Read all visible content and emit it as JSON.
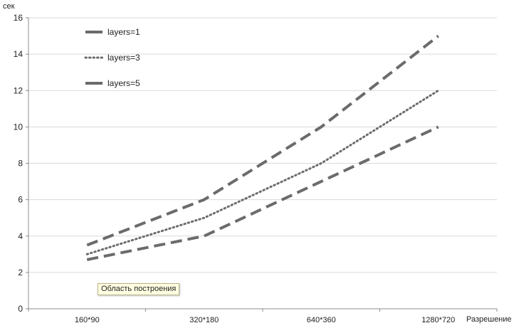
{
  "chart_data": {
    "type": "line",
    "ylabel": "сек",
    "xlabel": "Разрешение",
    "categories": [
      "160*90",
      "320*180",
      "640*360",
      "1280*720"
    ],
    "ylim": [
      0,
      16
    ],
    "yticks": [
      0,
      2,
      4,
      6,
      8,
      10,
      12,
      14,
      16
    ],
    "grid": true,
    "legend_position": "top-left",
    "series": [
      {
        "name": "layers=1",
        "values": [
          3.5,
          6,
          10,
          15
        ],
        "style": "dashed",
        "color": "#6b6b6b"
      },
      {
        "name": "layers=3",
        "values": [
          3,
          5,
          8,
          12
        ],
        "style": "dotted",
        "color": "#6b6b6b"
      },
      {
        "name": "layers=5",
        "values": [
          2.7,
          4,
          7,
          10
        ],
        "style": "dashed",
        "color": "#6b6b6b"
      }
    ]
  },
  "tooltip": {
    "text": "Область построения"
  },
  "colors": {
    "grid": "#d9d9d9",
    "axis": "#8c8c8c",
    "series": "#6b6b6b"
  }
}
